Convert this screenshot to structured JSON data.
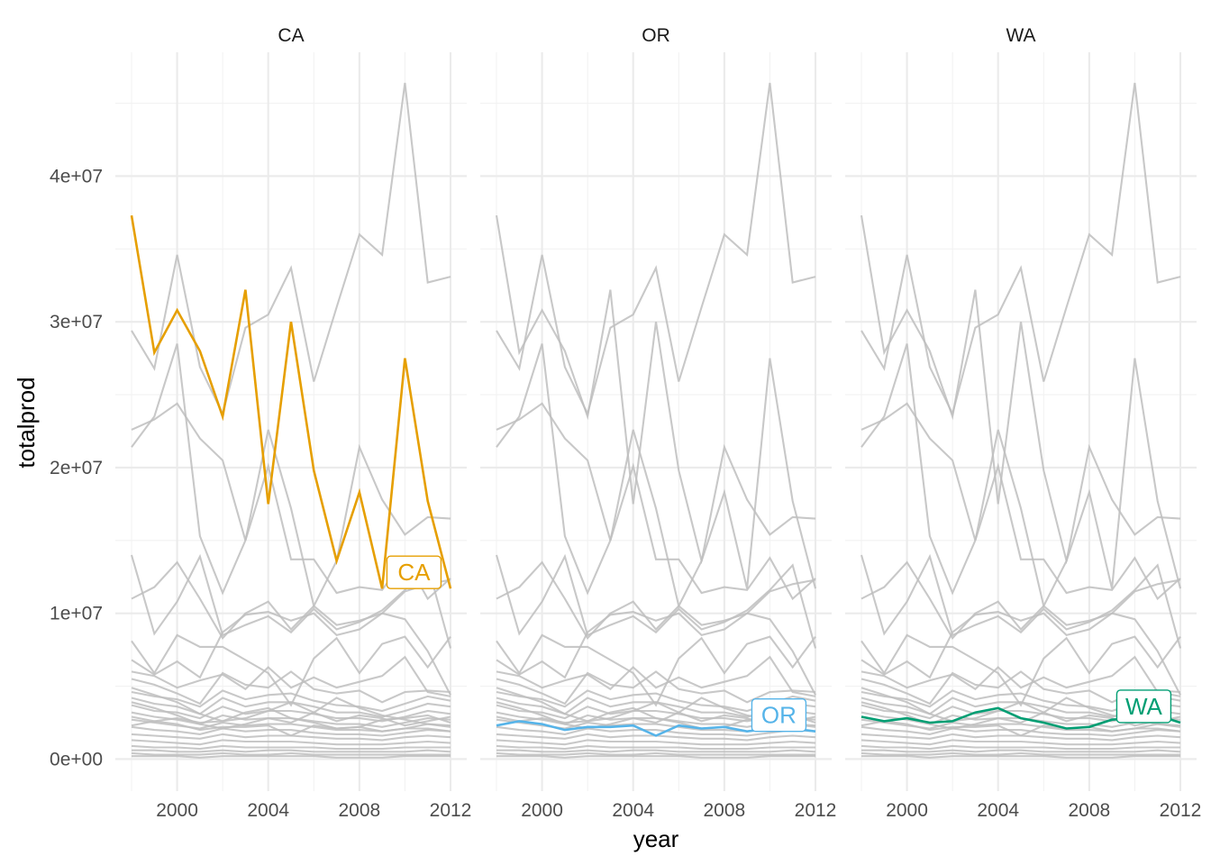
{
  "chart_data": {
    "type": "line",
    "facet_by": "state",
    "xlabel": "year",
    "ylabel": "totalprod",
    "xlim": [
      1998,
      2012
    ],
    "ylim": [
      -2200000,
      48500000
    ],
    "x_ticks": [
      2000,
      2004,
      2008,
      2012
    ],
    "x_tick_labels": [
      "2000",
      "2004",
      "2008",
      "2012"
    ],
    "y_ticks": [
      0,
      10000000,
      20000000,
      30000000,
      40000000
    ],
    "y_tick_labels": [
      "0e+00",
      "1e+07",
      "2e+07",
      "3e+07",
      "4e+07"
    ],
    "grid": true,
    "legend": "none",
    "years": [
      1998,
      1999,
      2000,
      2001,
      2002,
      2003,
      2004,
      2005,
      2006,
      2007,
      2008,
      2009,
      2010,
      2011,
      2012
    ],
    "panels": [
      {
        "name": "CA",
        "highlight": "CA",
        "color": "#E69F00"
      },
      {
        "name": "OR",
        "highlight": "OR",
        "color": "#56B4E9"
      },
      {
        "name": "WA",
        "highlight": "WA",
        "color": "#009E73"
      }
    ],
    "background_color": "#bebebe",
    "series": [
      {
        "name": "CA",
        "values": [
          37300000,
          27900000,
          30800000,
          28000000,
          23500000,
          32200000,
          17500000,
          30000000,
          19800000,
          13600000,
          18300000,
          11700000,
          27500000,
          17700000,
          11700000
        ]
      },
      {
        "name": "OR",
        "values": [
          2300000,
          2600000,
          2400000,
          2000000,
          2200000,
          2200000,
          2300000,
          1600000,
          2300000,
          2100000,
          2200000,
          1900000,
          2100000,
          2100000,
          1900000
        ]
      },
      {
        "name": "WA",
        "values": [
          2900000,
          2600000,
          2800000,
          2500000,
          2600000,
          3200000,
          3500000,
          2800000,
          2500000,
          2100000,
          2200000,
          2700000,
          2800000,
          3000000,
          2500000
        ]
      },
      {
        "values": [
          29400000,
          26800000,
          34600000,
          26900000,
          23700000,
          29600000,
          30500000,
          33700000,
          25900000,
          31000000,
          36000000,
          34600000,
          46400000,
          32700000,
          33100000
        ]
      },
      {
        "values": [
          22600000,
          23300000,
          24400000,
          22000000,
          20500000,
          15000000,
          22600000,
          17200000,
          10500000,
          13600000,
          21400000,
          17800000,
          15400000,
          16600000,
          16500000
        ]
      },
      {
        "values": [
          21400000,
          23500000,
          28500000,
          15300000,
          11400000,
          15000000,
          20100000,
          13700000,
          13700000,
          11400000,
          11800000,
          11600000,
          13800000,
          11000000,
          12400000
        ]
      },
      {
        "values": [
          14000000,
          8600000,
          10800000,
          13900000,
          8500000,
          9200000,
          9800000,
          8700000,
          10300000,
          8900000,
          9400000,
          10200000,
          11600000,
          13300000,
          7600000
        ]
      },
      {
        "values": [
          11000000,
          11800000,
          13500000,
          11000000,
          8300000,
          10000000,
          10800000,
          8900000,
          10500000,
          9200000,
          9500000,
          10000000,
          11500000,
          12000000,
          12300000
        ]
      },
      {
        "values": [
          8100000,
          5900000,
          8500000,
          7700000,
          7700000,
          6800000,
          5900000,
          3700000,
          6900000,
          8300000,
          5900000,
          7900000,
          8400000,
          6300000,
          8400000
        ]
      },
      {
        "values": [
          6800000,
          5800000,
          6700000,
          5600000,
          8700000,
          9900000,
          10100000,
          9500000,
          10000000,
          8500000,
          8900000,
          10000000,
          9600000,
          7400000,
          4400000
        ]
      },
      {
        "values": [
          6000000,
          5700000,
          4900000,
          5400000,
          5800000,
          4800000,
          6300000,
          4900000,
          5600000,
          4900000,
          5300000,
          5700000,
          7000000,
          4600000,
          4300000
        ]
      },
      {
        "values": [
          5500000,
          5100000,
          4500000,
          3800000,
          5900000,
          5100000,
          4900000,
          6000000,
          4800000,
          4500000,
          4700000,
          3900000,
          4600000,
          4700000,
          4600000
        ]
      },
      {
        "values": [
          4600000,
          4300000,
          4100000,
          3600000,
          4700000,
          4100000,
          4400000,
          4500000,
          4000000,
          3700000,
          3600000,
          3300000,
          3800000,
          4300000,
          4000000
        ]
      },
      {
        "values": [
          4200000,
          3800000,
          3600000,
          3100000,
          4200000,
          3600000,
          3900000,
          3900000,
          3600000,
          3200000,
          3200000,
          2900000,
          3300000,
          3800000,
          3600000
        ]
      },
      {
        "values": [
          3700000,
          3300000,
          3200000,
          2800000,
          3600000,
          3100000,
          3300000,
          3300000,
          3100000,
          2800000,
          2800000,
          2600000,
          2900000,
          3300000,
          3100000
        ]
      },
      {
        "values": [
          3200000,
          2900000,
          2700000,
          2400000,
          3000000,
          2700000,
          2800000,
          2800000,
          2600000,
          2400000,
          2400000,
          2200000,
          2500000,
          2800000,
          2700000
        ]
      },
      {
        "values": [
          2700000,
          2500000,
          2300000,
          2100000,
          2500000,
          2300000,
          2400000,
          2400000,
          2200000,
          2000000,
          2000000,
          1900000,
          2100000,
          2400000,
          2300000
        ]
      },
      {
        "values": [
          2200000,
          2000000,
          1900000,
          1700000,
          2100000,
          1900000,
          2000000,
          2000000,
          1800000,
          1700000,
          1700000,
          1600000,
          1800000,
          2000000,
          1900000
        ]
      },
      {
        "values": [
          1700000,
          1600000,
          1500000,
          1400000,
          1700000,
          1500000,
          1600000,
          1600000,
          1500000,
          1400000,
          1400000,
          1300000,
          1500000,
          1600000,
          1500000
        ]
      },
      {
        "values": [
          1300000,
          1200000,
          1100000,
          1000000,
          1300000,
          1200000,
          1200000,
          1200000,
          1100000,
          1000000,
          1000000,
          1000000,
          1100000,
          1200000,
          1100000
        ]
      },
      {
        "values": [
          900000,
          800000,
          800000,
          700000,
          900000,
          800000,
          800000,
          800000,
          800000,
          700000,
          700000,
          700000,
          800000,
          800000,
          800000
        ]
      },
      {
        "values": [
          600000,
          600000,
          500000,
          500000,
          600000,
          500000,
          600000,
          600000,
          500000,
          500000,
          500000,
          500000,
          500000,
          600000,
          500000
        ]
      },
      {
        "values": [
          400000,
          300000,
          300000,
          300000,
          400000,
          300000,
          300000,
          400000,
          300000,
          300000,
          300000,
          300000,
          300000,
          300000,
          300000
        ]
      },
      {
        "values": [
          200000,
          200000,
          200000,
          100000,
          200000,
          200000,
          200000,
          200000,
          200000,
          100000,
          100000,
          100000,
          200000,
          200000,
          200000
        ]
      },
      {
        "values": [
          4900000,
          4400000,
          3900000,
          3100000,
          2600000,
          2800000,
          3300000,
          3900000,
          3200000,
          2600000,
          3000000,
          2800000,
          2300000,
          2600000,
          2900000
        ]
      },
      {
        "values": [
          3900000,
          3500000,
          3000000,
          2400000,
          2100000,
          2400000,
          2800000,
          2500000,
          3200000,
          4200000,
          3500000,
          3000000,
          2700000,
          2400000,
          2200000
        ]
      }
    ]
  }
}
